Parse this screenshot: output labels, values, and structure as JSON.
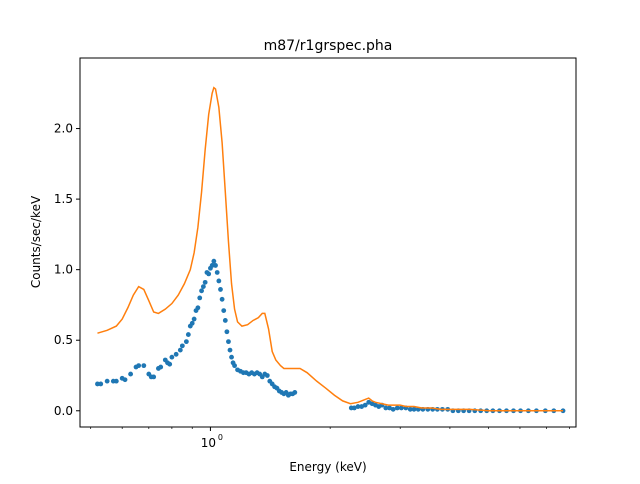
{
  "chart_data": {
    "type": "scatter",
    "title": "m87/r1grspec.pha",
    "xlabel": "Energy (keV)",
    "ylabel": "Counts/sec/keV",
    "xscale": "log",
    "xlim": [
      0.47,
      8.3
    ],
    "ylim": [
      -0.115,
      2.5
    ],
    "x_tick_labels": [
      {
        "value": 1.0,
        "label": "10",
        "base": "10",
        "exp": "0"
      }
    ],
    "y_ticks": [
      0.0,
      0.5,
      1.0,
      1.5,
      2.0
    ],
    "y_tick_labels": [
      "0.0",
      "0.5",
      "1.0",
      "1.5",
      "2.0"
    ],
    "grid": false,
    "legend": false,
    "series": [
      {
        "kind": "points",
        "color": "#1f77b4",
        "points": [
          [
            0.52,
            0.19
          ],
          [
            0.53,
            0.19
          ],
          [
            0.55,
            0.21
          ],
          [
            0.57,
            0.21
          ],
          [
            0.58,
            0.21
          ],
          [
            0.6,
            0.23
          ],
          [
            0.61,
            0.22
          ],
          [
            0.63,
            0.26
          ],
          [
            0.65,
            0.31
          ],
          [
            0.66,
            0.32
          ],
          [
            0.68,
            0.32
          ],
          [
            0.7,
            0.26
          ],
          [
            0.71,
            0.24
          ],
          [
            0.72,
            0.24
          ],
          [
            0.74,
            0.3
          ],
          [
            0.75,
            0.31
          ],
          [
            0.77,
            0.36
          ],
          [
            0.78,
            0.34
          ],
          [
            0.79,
            0.33
          ],
          [
            0.8,
            0.38
          ],
          [
            0.82,
            0.4
          ],
          [
            0.84,
            0.43
          ],
          [
            0.85,
            0.46
          ],
          [
            0.87,
            0.49
          ],
          [
            0.88,
            0.54
          ],
          [
            0.89,
            0.6
          ],
          [
            0.9,
            0.62
          ],
          [
            0.91,
            0.65
          ],
          [
            0.92,
            0.71
          ],
          [
            0.93,
            0.73
          ],
          [
            0.94,
            0.8
          ],
          [
            0.95,
            0.85
          ],
          [
            0.96,
            0.88
          ],
          [
            0.97,
            0.91
          ],
          [
            0.98,
            0.98
          ],
          [
            0.99,
            0.97
          ],
          [
            1.0,
            1.01
          ],
          [
            1.01,
            1.03
          ],
          [
            1.02,
            1.06
          ],
          [
            1.03,
            1.03
          ],
          [
            1.04,
            0.98
          ],
          [
            1.05,
            0.92
          ],
          [
            1.06,
            0.86
          ],
          [
            1.07,
            0.79
          ],
          [
            1.08,
            0.71
          ],
          [
            1.09,
            0.64
          ],
          [
            1.1,
            0.56
          ],
          [
            1.11,
            0.49
          ],
          [
            1.12,
            0.43
          ],
          [
            1.13,
            0.38
          ],
          [
            1.14,
            0.34
          ],
          [
            1.15,
            0.32
          ],
          [
            1.17,
            0.29
          ],
          [
            1.19,
            0.28
          ],
          [
            1.21,
            0.27
          ],
          [
            1.23,
            0.27
          ],
          [
            1.25,
            0.26
          ],
          [
            1.27,
            0.27
          ],
          [
            1.29,
            0.26
          ],
          [
            1.31,
            0.27
          ],
          [
            1.33,
            0.26
          ],
          [
            1.35,
            0.24
          ],
          [
            1.37,
            0.26
          ],
          [
            1.39,
            0.25
          ],
          [
            1.41,
            0.21
          ],
          [
            1.43,
            0.19
          ],
          [
            1.45,
            0.17
          ],
          [
            1.47,
            0.16
          ],
          [
            1.49,
            0.14
          ],
          [
            1.51,
            0.13
          ],
          [
            1.53,
            0.12
          ],
          [
            1.55,
            0.13
          ],
          [
            1.57,
            0.11
          ],
          [
            1.59,
            0.12
          ],
          [
            1.61,
            0.12
          ],
          [
            1.63,
            0.13
          ],
          [
            2.26,
            0.02
          ],
          [
            2.3,
            0.02
          ],
          [
            2.35,
            0.03
          ],
          [
            2.4,
            0.03
          ],
          [
            2.45,
            0.04
          ],
          [
            2.5,
            0.06
          ],
          [
            2.55,
            0.05
          ],
          [
            2.6,
            0.04
          ],
          [
            2.65,
            0.03
          ],
          [
            2.7,
            0.04
          ],
          [
            2.76,
            0.02
          ],
          [
            2.82,
            0.02
          ],
          [
            2.88,
            0.01
          ],
          [
            2.95,
            0.02
          ],
          [
            3.02,
            0.02
          ],
          [
            3.1,
            0.02
          ],
          [
            3.18,
            0.01
          ],
          [
            3.25,
            0.01
          ],
          [
            3.33,
            0.01
          ],
          [
            3.42,
            0.01
          ],
          [
            3.52,
            0.01
          ],
          [
            3.62,
            0.01
          ],
          [
            3.72,
            0.01
          ],
          [
            3.83,
            0.01
          ],
          [
            3.95,
            0.01
          ],
          [
            4.07,
            0.0
          ],
          [
            4.2,
            0.0
          ],
          [
            4.33,
            0.0
          ],
          [
            4.47,
            0.0
          ],
          [
            4.62,
            0.0
          ],
          [
            4.78,
            0.0
          ],
          [
            4.95,
            0.0
          ],
          [
            5.13,
            0.0
          ],
          [
            5.33,
            0.0
          ],
          [
            5.55,
            0.0
          ],
          [
            5.78,
            0.0
          ],
          [
            6.02,
            0.0
          ],
          [
            6.3,
            0.0
          ],
          [
            6.6,
            0.0
          ],
          [
            6.95,
            0.0
          ],
          [
            7.3,
            0.0
          ],
          [
            7.7,
            0.0
          ]
        ]
      },
      {
        "kind": "line",
        "color": "#ff7f0e",
        "points": [
          [
            0.52,
            0.55
          ],
          [
            0.55,
            0.57
          ],
          [
            0.58,
            0.6
          ],
          [
            0.6,
            0.65
          ],
          [
            0.62,
            0.73
          ],
          [
            0.64,
            0.82
          ],
          [
            0.66,
            0.88
          ],
          [
            0.68,
            0.86
          ],
          [
            0.7,
            0.78
          ],
          [
            0.72,
            0.7
          ],
          [
            0.74,
            0.69
          ],
          [
            0.77,
            0.72
          ],
          [
            0.8,
            0.76
          ],
          [
            0.83,
            0.82
          ],
          [
            0.86,
            0.9
          ],
          [
            0.89,
            1.0
          ],
          [
            0.91,
            1.12
          ],
          [
            0.93,
            1.3
          ],
          [
            0.95,
            1.55
          ],
          [
            0.97,
            1.85
          ],
          [
            0.99,
            2.1
          ],
          [
            1.01,
            2.25
          ],
          [
            1.02,
            2.29
          ],
          [
            1.03,
            2.28
          ],
          [
            1.05,
            2.15
          ],
          [
            1.07,
            1.9
          ],
          [
            1.09,
            1.55
          ],
          [
            1.11,
            1.2
          ],
          [
            1.13,
            0.9
          ],
          [
            1.15,
            0.72
          ],
          [
            1.17,
            0.63
          ],
          [
            1.2,
            0.6
          ],
          [
            1.24,
            0.61
          ],
          [
            1.28,
            0.64
          ],
          [
            1.32,
            0.66
          ],
          [
            1.35,
            0.69
          ],
          [
            1.37,
            0.69
          ],
          [
            1.4,
            0.58
          ],
          [
            1.43,
            0.42
          ],
          [
            1.46,
            0.36
          ],
          [
            1.5,
            0.32
          ],
          [
            1.53,
            0.3
          ],
          [
            1.6,
            0.3
          ],
          [
            1.68,
            0.3
          ],
          [
            1.75,
            0.27
          ],
          [
            1.85,
            0.21
          ],
          [
            1.95,
            0.16
          ],
          [
            2.05,
            0.11
          ],
          [
            2.15,
            0.07
          ],
          [
            2.25,
            0.05
          ],
          [
            2.35,
            0.06
          ],
          [
            2.45,
            0.08
          ],
          [
            2.5,
            0.09
          ],
          [
            2.55,
            0.07
          ],
          [
            2.6,
            0.06
          ],
          [
            2.7,
            0.05
          ],
          [
            2.8,
            0.04
          ],
          [
            2.9,
            0.04
          ],
          [
            3.0,
            0.04
          ],
          [
            3.1,
            0.03
          ],
          [
            3.25,
            0.03
          ],
          [
            3.4,
            0.02
          ],
          [
            3.6,
            0.02
          ],
          [
            3.8,
            0.01
          ],
          [
            4.0,
            0.01
          ],
          [
            4.2,
            0.01
          ],
          [
            4.5,
            0.01
          ],
          [
            5.0,
            0.0
          ],
          [
            5.5,
            0.0
          ],
          [
            6.0,
            0.0
          ],
          [
            6.5,
            0.0
          ],
          [
            7.0,
            0.0
          ],
          [
            7.5,
            0.0
          ],
          [
            7.7,
            0.0
          ]
        ]
      }
    ]
  }
}
